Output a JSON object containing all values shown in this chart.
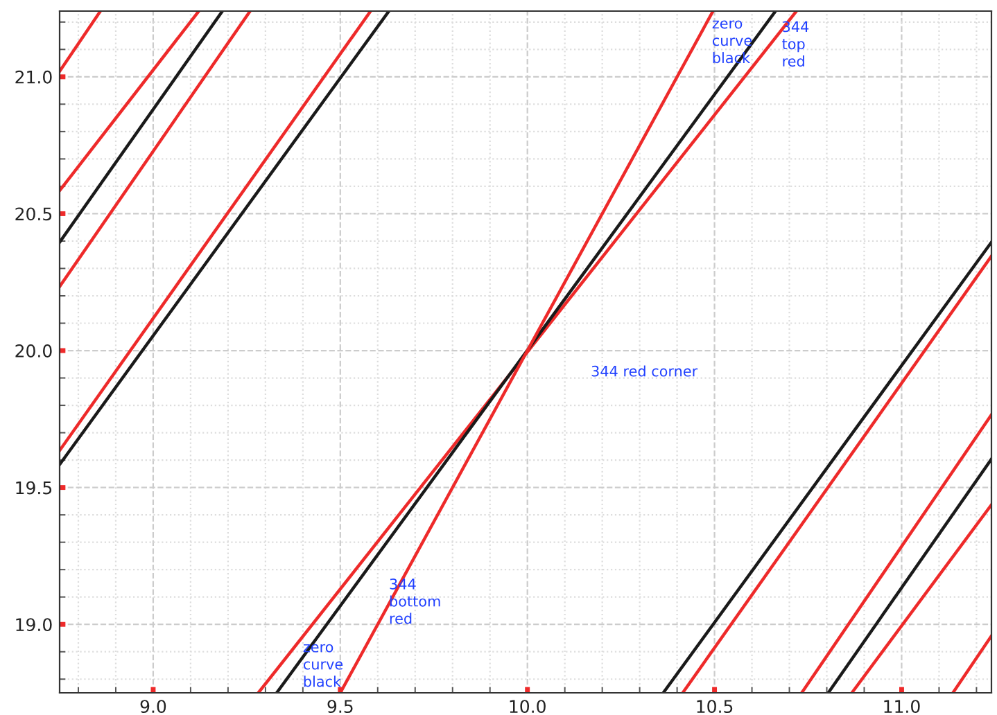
{
  "chart_data": {
    "type": "line",
    "xlim": [
      8.75,
      11.24
    ],
    "ylim": [
      18.75,
      21.24
    ],
    "xticks": [
      {
        "value": 9,
        "label": "9.0"
      },
      9.5,
      {
        "value": 10,
        "label": "10.0"
      },
      10.5,
      {
        "value": 11,
        "label": "11.0"
      }
    ],
    "yticks": [
      {
        "value": 19,
        "label": "19.0"
      },
      19.5,
      {
        "value": 20,
        "label": "20.0"
      },
      20.5,
      {
        "value": 21,
        "label": "21.0"
      }
    ],
    "grid": true,
    "legend": false,
    "marker": "none",
    "line_style": "solid",
    "series": [
      {
        "color": "#ee2a2a",
        "x": [
          8.75,
          8.859
        ],
        "values": [
          21.02,
          21.24
        ]
      },
      {
        "color": "#ee2a2a",
        "x": [
          8.75,
          9.122
        ],
        "values": [
          20.584,
          21.24
        ]
      },
      {
        "color": "#1a1a1a",
        "x": [
          8.75,
          9.185
        ],
        "values": [
          20.396,
          21.24
        ]
      },
      {
        "color": "#ee2a2a",
        "x": [
          8.75,
          9.259
        ],
        "values": [
          20.234,
          21.24
        ]
      },
      {
        "color": "#ee2a2a",
        "x": [
          8.75,
          9.581
        ],
        "values": [
          19.635,
          21.24
        ]
      },
      {
        "color": "#1a1a1a",
        "x": [
          8.75,
          9.63
        ],
        "values": [
          19.584,
          21.24
        ]
      },
      {
        "color": "#ee2a2a",
        "x": [
          9.281,
          10.719
        ],
        "values": [
          18.75,
          21.24
        ]
      },
      {
        "color": "#1a1a1a",
        "x": [
          9.33,
          10.663
        ],
        "values": [
          18.75,
          21.24
        ]
      },
      {
        "color": "#ee2a2a",
        "x": [
          9.5,
          10.496
        ],
        "values": [
          18.75,
          21.24
        ]
      },
      {
        "color": "#1a1a1a",
        "x": [
          10.363,
          11.24
        ],
        "values": [
          18.75,
          20.396
        ]
      },
      {
        "color": "#ee2a2a",
        "x": [
          10.415,
          11.24
        ],
        "values": [
          18.75,
          20.345
        ]
      },
      {
        "color": "#ee2a2a",
        "x": [
          10.733,
          11.24
        ],
        "values": [
          18.75,
          19.766
        ]
      },
      {
        "color": "#1a1a1a",
        "x": [
          10.804,
          11.24
        ],
        "values": [
          18.75,
          19.604
        ]
      },
      {
        "color": "#ee2a2a",
        "x": [
          10.867,
          11.24
        ],
        "values": [
          18.75,
          19.437
        ]
      },
      {
        "color": "#ee2a2a",
        "x": [
          11.137,
          11.24
        ],
        "values": [
          18.75,
          18.958
        ]
      }
    ],
    "annotations": [
      "zero\ncurve\nblack",
      "344\ntop\nred",
      "344 red corner",
      {
        "text": "344\nbottom\nred",
        "x": 9.63,
        "y": 19.08
      },
      {
        "text": "zero\ncurve\nblack",
        "x": 9.4,
        "y": 18.85
      }
    ]
  }
}
